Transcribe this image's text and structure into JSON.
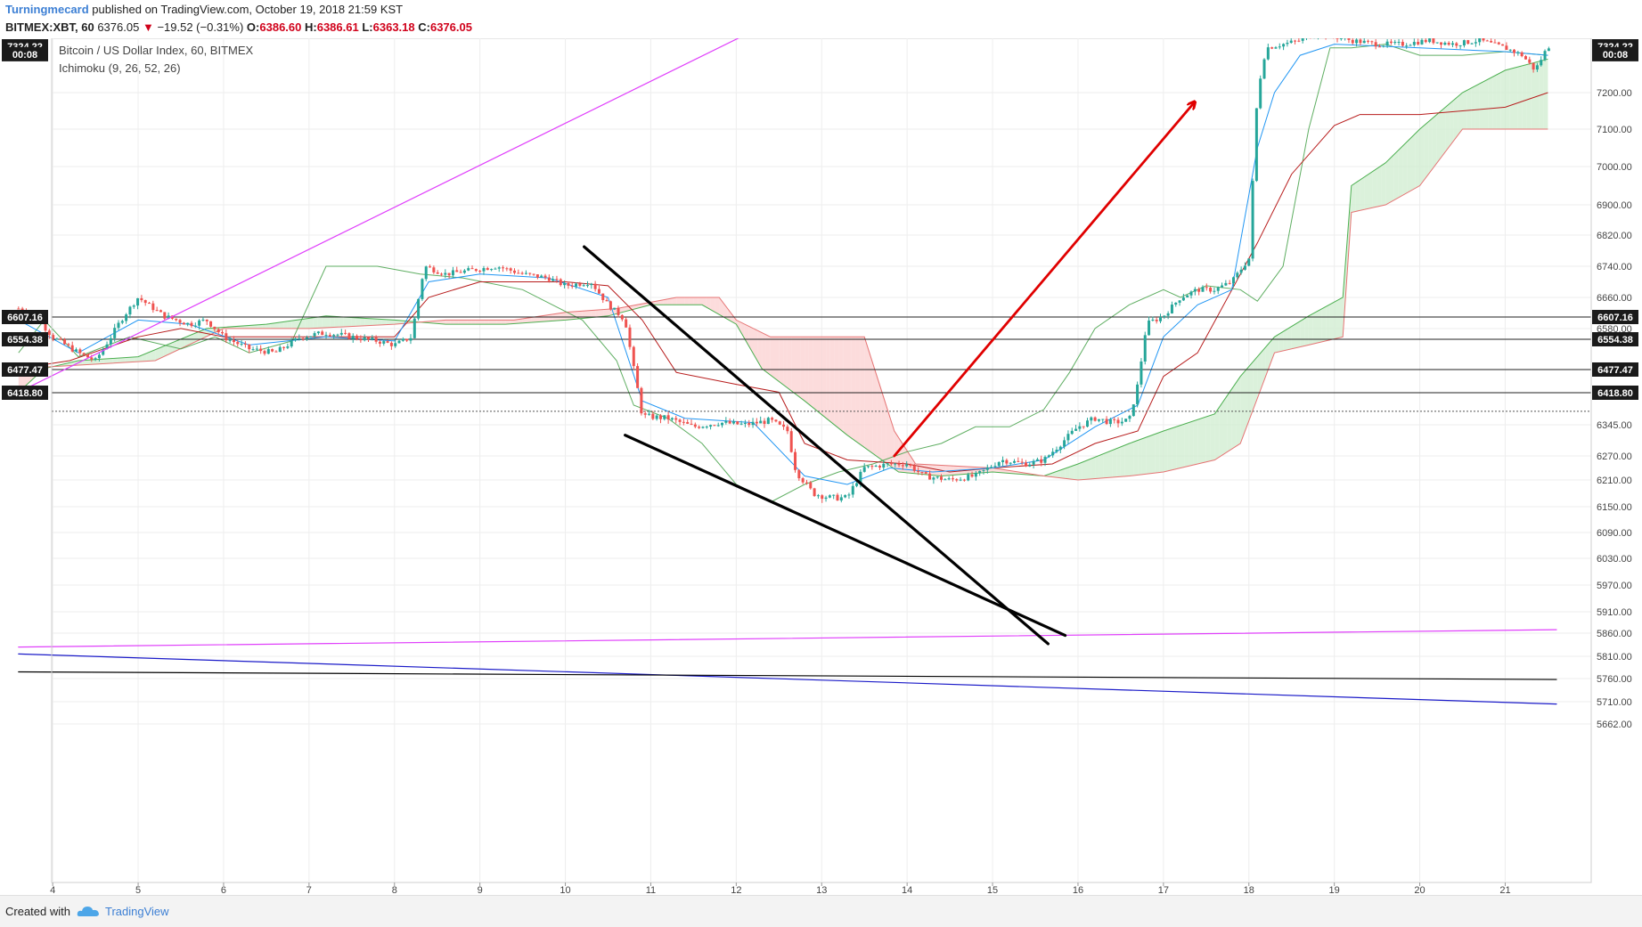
{
  "header": {
    "author": "Turningmecard",
    "published": "published on TradingView.com, October 19, 2018 21:59 KST",
    "symbol": "BITMEX:XBT, 60",
    "last": "6376.05",
    "change": "−19.52 (−0.31%)",
    "o_label": "O:",
    "o_val": "6386.60",
    "h_label": "H:",
    "h_val": "6386.61",
    "l_label": "L:",
    "l_val": "6363.18",
    "c_label": "C:",
    "c_val": "6376.05"
  },
  "legend": {
    "series_title": "Bitcoin / US Dollar Index, 60, BITMEX",
    "indicator": "Ichimoku (9, 26, 52, 26)"
  },
  "footer": {
    "created_with": "Created with",
    "brand": "TradingView"
  },
  "colors": {
    "up": "#26a69a",
    "down": "#ef5350",
    "cloud_green": "#a5d6a7",
    "cloud_red": "#ef9a9a",
    "tenkan": "#2196f3",
    "kijun": "#b71c1c",
    "chikou": "#43a047",
    "span_a": "#4caf50",
    "span_b": "#e57373",
    "magenta": "#e040fb",
    "arrow": "#e00000",
    "navy": "#1a1ac8"
  },
  "chart_data": {
    "type": "candlestick",
    "x_axis": {
      "ticks": [
        "4",
        "5",
        "6",
        "7",
        "8",
        "9",
        "10",
        "11",
        "12",
        "13",
        "14",
        "15",
        "16",
        "17",
        "18",
        "19",
        "20",
        "21"
      ],
      "domain": [
        3.55,
        21.6
      ]
    },
    "y_axis": {
      "ticks": [
        "5662.00",
        "5710.00",
        "5760.00",
        "5810.00",
        "5860.00",
        "5910.00",
        "5970.00",
        "6030.00",
        "6090.00",
        "6150.00",
        "6210.00",
        "6270.00",
        "6345.00",
        "6580.00",
        "6660.00",
        "6740.00",
        "6820.00",
        "6900.00",
        "7000.00",
        "7100.00",
        "7200.00"
      ],
      "display": "tradingview-compressed"
    },
    "price_labels": [
      {
        "label": "7324.22",
        "value": 7324.22
      },
      {
        "label": "00:08",
        "value": 7303
      },
      {
        "label": "6607.16",
        "value": 6607.16
      },
      {
        "label": "6554.38",
        "value": 6554.38
      },
      {
        "label": "6477.47",
        "value": 6477.47
      },
      {
        "label": "6418.80",
        "value": 6418.8
      }
    ],
    "horizontal_lines": [
      6607.16,
      6554.38,
      6477.47,
      6418.8
    ],
    "dotted_line": 6376.05,
    "price_path": [
      [
        3.6,
        6630
      ],
      [
        3.8,
        6610
      ],
      [
        4.0,
        6560
      ],
      [
        4.3,
        6520
      ],
      [
        4.5,
        6500
      ],
      [
        4.8,
        6600
      ],
      [
        5.0,
        6660
      ],
      [
        5.3,
        6610
      ],
      [
        5.6,
        6590
      ],
      [
        5.8,
        6600
      ],
      [
        6.0,
        6560
      ],
      [
        6.3,
        6530
      ],
      [
        6.6,
        6520
      ],
      [
        6.9,
        6560
      ],
      [
        7.2,
        6570
      ],
      [
        7.5,
        6560
      ],
      [
        7.8,
        6550
      ],
      [
        8.0,
        6540
      ],
      [
        8.2,
        6560
      ],
      [
        8.35,
        6740
      ],
      [
        8.6,
        6720
      ],
      [
        8.9,
        6730
      ],
      [
        9.2,
        6740
      ],
      [
        9.5,
        6720
      ],
      [
        9.8,
        6710
      ],
      [
        10.0,
        6690
      ],
      [
        10.3,
        6700
      ],
      [
        10.5,
        6640
      ],
      [
        10.7,
        6600
      ],
      [
        10.8,
        6480
      ],
      [
        10.9,
        6365
      ],
      [
        11.2,
        6360
      ],
      [
        11.5,
        6340
      ],
      [
        11.8,
        6350
      ],
      [
        12.1,
        6345
      ],
      [
        12.4,
        6355
      ],
      [
        12.6,
        6330
      ],
      [
        12.7,
        6230
      ],
      [
        12.9,
        6180
      ],
      [
        13.1,
        6170
      ],
      [
        13.3,
        6170
      ],
      [
        13.5,
        6240
      ],
      [
        13.8,
        6250
      ],
      [
        14.0,
        6250
      ],
      [
        14.2,
        6220
      ],
      [
        14.5,
        6210
      ],
      [
        14.8,
        6220
      ],
      [
        15.1,
        6260
      ],
      [
        15.4,
        6250
      ],
      [
        15.6,
        6260
      ],
      [
        15.8,
        6300
      ],
      [
        16.0,
        6340
      ],
      [
        16.2,
        6360
      ],
      [
        16.4,
        6350
      ],
      [
        16.6,
        6355
      ],
      [
        16.7,
        6440
      ],
      [
        16.8,
        6590
      ],
      [
        17.0,
        6610
      ],
      [
        17.2,
        6660
      ],
      [
        17.4,
        6680
      ],
      [
        17.6,
        6680
      ],
      [
        17.8,
        6700
      ],
      [
        18.0,
        6760
      ],
      [
        18.1,
        7200
      ],
      [
        18.2,
        7320
      ],
      [
        18.4,
        7330
      ],
      [
        18.6,
        7340
      ],
      [
        18.8,
        7360
      ],
      [
        19.0,
        7350
      ],
      [
        19.2,
        7340
      ],
      [
        19.5,
        7330
      ],
      [
        19.8,
        7330
      ],
      [
        20.1,
        7340
      ],
      [
        20.4,
        7330
      ],
      [
        20.7,
        7340
      ],
      [
        21.0,
        7320
      ],
      [
        21.2,
        7300
      ],
      [
        21.35,
        7260
      ],
      [
        21.5,
        7324
      ]
    ],
    "ichimoku": {
      "kijun": [
        [
          3.6,
          6480
        ],
        [
          4.2,
          6500
        ],
        [
          5.0,
          6560
        ],
        [
          5.5,
          6580
        ],
        [
          6.0,
          6560
        ],
        [
          7.0,
          6560
        ],
        [
          8.0,
          6560
        ],
        [
          8.4,
          6660
        ],
        [
          9.0,
          6700
        ],
        [
          10.0,
          6700
        ],
        [
          10.5,
          6690
        ],
        [
          10.9,
          6600
        ],
        [
          11.3,
          6470
        ],
        [
          12.0,
          6440
        ],
        [
          12.5,
          6420
        ],
        [
          12.8,
          6300
        ],
        [
          13.3,
          6260
        ],
        [
          14.0,
          6250
        ],
        [
          14.5,
          6230
        ],
        [
          15.0,
          6240
        ],
        [
          15.7,
          6250
        ],
        [
          16.2,
          6300
        ],
        [
          16.7,
          6330
        ],
        [
          17.0,
          6460
        ],
        [
          17.4,
          6520
        ],
        [
          18.1,
          6800
        ],
        [
          18.5,
          6980
        ],
        [
          19.0,
          7110
        ],
        [
          19.3,
          7140
        ],
        [
          20.0,
          7140
        ],
        [
          21.0,
          7160
        ],
        [
          21.5,
          7200
        ]
      ],
      "tenkan": [
        [
          3.6,
          6600
        ],
        [
          4.3,
          6520
        ],
        [
          5.0,
          6600
        ],
        [
          5.6,
          6590
        ],
        [
          6.3,
          6540
        ],
        [
          7.2,
          6560
        ],
        [
          8.0,
          6550
        ],
        [
          8.4,
          6700
        ],
        [
          9.0,
          6720
        ],
        [
          9.8,
          6710
        ],
        [
          10.5,
          6660
        ],
        [
          10.9,
          6400
        ],
        [
          11.4,
          6360
        ],
        [
          12.2,
          6350
        ],
        [
          12.8,
          6220
        ],
        [
          13.3,
          6200
        ],
        [
          13.8,
          6240
        ],
        [
          14.3,
          6230
        ],
        [
          15.0,
          6240
        ],
        [
          15.6,
          6260
        ],
        [
          16.2,
          6340
        ],
        [
          16.7,
          6390
        ],
        [
          17.0,
          6560
        ],
        [
          17.4,
          6640
        ],
        [
          17.8,
          6680
        ],
        [
          18.1,
          7050
        ],
        [
          18.3,
          7200
        ],
        [
          18.6,
          7300
        ],
        [
          19.0,
          7330
        ],
        [
          20.0,
          7320
        ],
        [
          21.0,
          7310
        ],
        [
          21.5,
          7300
        ]
      ],
      "chikou": [
        [
          3.6,
          6520
        ],
        [
          3.9,
          6600
        ],
        [
          4.3,
          6510
        ],
        [
          4.9,
          6560
        ],
        [
          5.5,
          6530
        ],
        [
          5.9,
          6560
        ],
        [
          6.3,
          6520
        ],
        [
          6.8,
          6550
        ],
        [
          7.2,
          6740
        ],
        [
          7.8,
          6740
        ],
        [
          8.3,
          6720
        ],
        [
          8.8,
          6710
        ],
        [
          9.5,
          6680
        ],
        [
          10.2,
          6600
        ],
        [
          10.6,
          6500
        ],
        [
          10.8,
          6390
        ],
        [
          11.2,
          6360
        ],
        [
          11.6,
          6300
        ],
        [
          12.0,
          6200
        ],
        [
          12.4,
          6160
        ],
        [
          12.8,
          6200
        ],
        [
          13.2,
          6230
        ],
        [
          13.6,
          6250
        ],
        [
          14.0,
          6280
        ],
        [
          14.4,
          6300
        ],
        [
          14.8,
          6340
        ],
        [
          15.2,
          6340
        ],
        [
          15.6,
          6380
        ],
        [
          15.9,
          6470
        ],
        [
          16.2,
          6580
        ],
        [
          16.6,
          6640
        ],
        [
          17.0,
          6680
        ],
        [
          17.2,
          6660
        ],
        [
          17.5,
          6690
        ],
        [
          17.9,
          6680
        ],
        [
          18.1,
          6650
        ],
        [
          18.4,
          6740
        ],
        [
          18.7,
          7100
        ],
        [
          18.95,
          7320
        ],
        [
          19.2,
          7320
        ],
        [
          19.6,
          7330
        ],
        [
          20.0,
          7300
        ],
        [
          20.5,
          7300
        ],
        [
          21.0,
          7310
        ],
        [
          21.5,
          7300
        ]
      ],
      "span_a": [
        [
          3.6,
          6420
        ],
        [
          3.9,
          6480
        ],
        [
          4.3,
          6500
        ],
        [
          5.0,
          6510
        ],
        [
          5.8,
          6580
        ],
        [
          6.5,
          6590
        ],
        [
          7.2,
          6610
        ],
        [
          8.0,
          6600
        ],
        [
          8.6,
          6590
        ],
        [
          9.3,
          6590
        ],
        [
          10.0,
          6600
        ],
        [
          10.5,
          6610
        ],
        [
          11.0,
          6640
        ],
        [
          11.6,
          6640
        ],
        [
          12.0,
          6590
        ],
        [
          12.3,
          6480
        ],
        [
          12.8,
          6400
        ],
        [
          13.3,
          6320
        ],
        [
          13.9,
          6230
        ],
        [
          14.4,
          6220
        ],
        [
          15.0,
          6230
        ],
        [
          15.6,
          6220
        ],
        [
          16.0,
          6250
        ],
        [
          16.6,
          6300
        ],
        [
          17.0,
          6330
        ],
        [
          17.6,
          6370
        ],
        [
          17.9,
          6460
        ],
        [
          18.3,
          6560
        ],
        [
          18.7,
          6610
        ],
        [
          19.1,
          6660
        ],
        [
          19.2,
          6950
        ],
        [
          19.6,
          7010
        ],
        [
          20.0,
          7100
        ],
        [
          20.5,
          7200
        ],
        [
          21.0,
          7260
        ],
        [
          21.5,
          7290
        ]
      ],
      "span_b": [
        [
          3.6,
          6480
        ],
        [
          4.4,
          6490
        ],
        [
          5.2,
          6500
        ],
        [
          6.0,
          6580
        ],
        [
          7.0,
          6580
        ],
        [
          8.0,
          6590
        ],
        [
          8.6,
          6600
        ],
        [
          9.4,
          6600
        ],
        [
          10.0,
          6620
        ],
        [
          10.6,
          6630
        ],
        [
          11.3,
          6660
        ],
        [
          11.8,
          6660
        ],
        [
          12.0,
          6600
        ],
        [
          12.4,
          6560
        ],
        [
          13.0,
          6560
        ],
        [
          13.5,
          6560
        ],
        [
          13.85,
          6330
        ],
        [
          14.1,
          6250
        ],
        [
          15.0,
          6240
        ],
        [
          15.6,
          6220
        ],
        [
          16.0,
          6210
        ],
        [
          16.6,
          6220
        ],
        [
          17.0,
          6230
        ],
        [
          17.6,
          6260
        ],
        [
          17.9,
          6300
        ],
        [
          18.3,
          6520
        ],
        [
          18.7,
          6540
        ],
        [
          19.1,
          6560
        ],
        [
          19.2,
          6880
        ],
        [
          19.6,
          6900
        ],
        [
          20.0,
          6950
        ],
        [
          20.5,
          7100
        ],
        [
          21.0,
          7100
        ],
        [
          21.5,
          7100
        ]
      ]
    },
    "drawings": [
      {
        "type": "line",
        "color": "magenta",
        "width": 1.2,
        "from": [
          3.6,
          6420
        ],
        "to": [
          14.3,
          7600
        ]
      },
      {
        "type": "line",
        "color": "magenta",
        "width": 1.2,
        "from": [
          3.6,
          5830
        ],
        "to": [
          21.6,
          5868
        ]
      },
      {
        "type": "line",
        "color": "navy",
        "width": 1.2,
        "from": [
          3.6,
          5815
        ],
        "to": [
          21.6,
          5705
        ]
      },
      {
        "type": "line",
        "color": "black",
        "width": 1.2,
        "from": [
          3.6,
          5775
        ],
        "to": [
          21.6,
          5758
        ]
      },
      {
        "type": "line",
        "color": "black",
        "width": 3.2,
        "from": [
          10.22,
          6790
        ],
        "to": [
          15.65,
          5837
        ]
      },
      {
        "type": "line",
        "color": "black",
        "width": 3.2,
        "from": [
          10.7,
          6320
        ],
        "to": [
          15.85,
          5855
        ]
      },
      {
        "type": "arrow",
        "color": "arrow",
        "width": 2.8,
        "from": [
          13.85,
          6270
        ],
        "to": [
          17.35,
          7170
        ]
      }
    ]
  }
}
